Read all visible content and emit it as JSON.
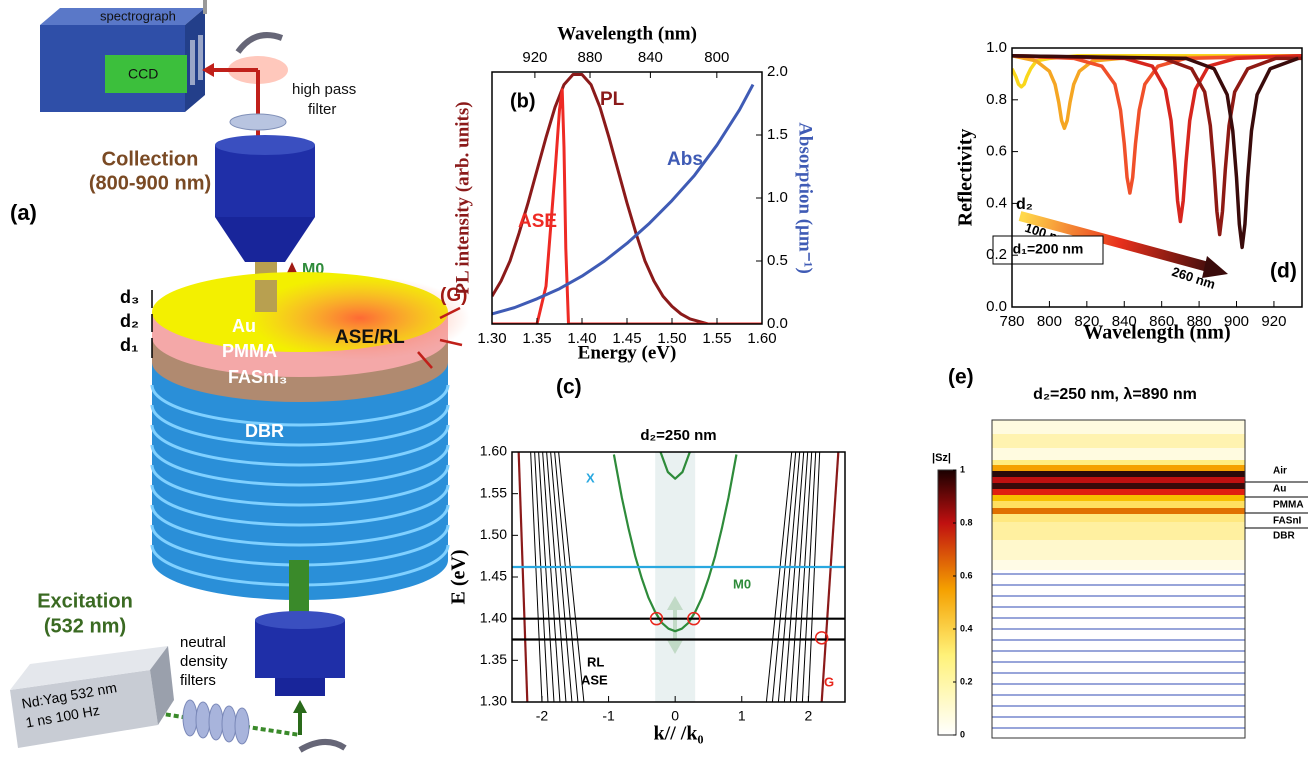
{
  "panel_a": {
    "label": "(a)",
    "spectrograph": "spectrograph",
    "ccd": "CCD",
    "high_pass_filter": [
      "high pass",
      "filter"
    ],
    "collection": [
      "Collection",
      "(800-900 nm)"
    ],
    "m0": "M0",
    "d3": "d₃",
    "d2": "d₂",
    "d1": "d₁",
    "au": "Au",
    "pmma": "PMMA",
    "fasni3": "FASnI₃",
    "dbr": "DBR",
    "ase_rl": "ASE/RL",
    "g": "(G)",
    "excitation": [
      "Excitation",
      "(532 nm)"
    ],
    "nd_filters": [
      "neutral",
      "density",
      "filters"
    ],
    "laser": [
      "Nd:Yag 532 nm",
      "1 ns 100 Hz"
    ]
  },
  "chart_data": [
    {
      "type": "line",
      "label": "(b)",
      "x_label": "Energy (eV)",
      "x2_label": "Wavelength (nm)",
      "y_label": "PL intensity (arb. units)",
      "y2_label": "Absorption (μm⁻¹)",
      "xlim": [
        1.3,
        1.6
      ],
      "xticks": [
        {
          "value": 1.3,
          "label": "1.30"
        },
        1.35,
        {
          "value": 1.4,
          "label": "1.40"
        },
        1.45,
        {
          "value": 1.5,
          "label": "1.50"
        },
        1.55,
        {
          "value": 1.6,
          "label": "1.60"
        }
      ],
      "x2ticks": [
        920,
        880,
        840,
        800
      ],
      "ylim": [
        0,
        1
      ],
      "y2lim": [
        0,
        2
      ],
      "y2ticks": [
        {
          "value": 0,
          "label": "0.0"
        },
        0.5,
        {
          "value": 1,
          "label": "1.0"
        },
        1.5,
        {
          "value": 2,
          "label": "2.0"
        }
      ],
      "series": [
        {
          "name": "PL",
          "color": "#8b1a1a",
          "x": [
            1.3,
            1.31,
            1.32,
            1.33,
            1.34,
            1.35,
            1.36,
            1.37,
            1.38,
            1.39,
            1.4,
            1.41,
            1.42,
            1.43,
            1.44,
            1.45,
            1.46,
            1.47,
            1.48,
            1.49,
            1.5,
            1.51,
            1.52,
            1.53,
            1.54,
            1.55,
            1.56,
            1.57,
            1.58,
            1.59,
            1.6
          ],
          "values": [
            0.11,
            0.17,
            0.25,
            0.36,
            0.48,
            0.61,
            0.74,
            0.86,
            0.95,
            0.99,
            0.99,
            0.95,
            0.86,
            0.74,
            0.61,
            0.48,
            0.36,
            0.25,
            0.17,
            0.11,
            0.07,
            0.04,
            0.02,
            0.01,
            0,
            0,
            0,
            0,
            0,
            0,
            0
          ]
        },
        {
          "name": "ASE",
          "color": "#ee2a24",
          "x": [
            1.3,
            1.35,
            1.36,
            1.37,
            1.375,
            1.378,
            1.38,
            1.382,
            1.385,
            1.6
          ],
          "values": [
            0,
            0,
            0.15,
            0.6,
            0.85,
            0.93,
            0.7,
            0.3,
            0,
            0
          ]
        },
        {
          "name": "Abs",
          "color": "#3f5bb5",
          "axis": "y2",
          "x": [
            1.3,
            1.325,
            1.35,
            1.375,
            1.4,
            1.425,
            1.45,
            1.475,
            1.5,
            1.525,
            1.55,
            1.575,
            1.59
          ],
          "values": [
            0.08,
            0.13,
            0.2,
            0.28,
            0.38,
            0.5,
            0.64,
            0.8,
            0.98,
            1.18,
            1.42,
            1.7,
            1.9
          ]
        }
      ]
    },
    {
      "type": "line",
      "label": "(c)",
      "title": "d₂=250 nm",
      "x_label": "k// /k₀",
      "y_label": "E (eV)",
      "xlim": [
        -2.45,
        2.55
      ],
      "ylim": [
        1.3,
        1.6
      ],
      "xticks": [
        -2,
        -1,
        0,
        1,
        2
      ],
      "yticks": [
        {
          "value": 1.3,
          "label": "1.30"
        },
        1.35,
        {
          "value": 1.4,
          "label": "1.40"
        },
        1.45,
        {
          "value": 1.5,
          "label": "1.50"
        },
        1.55,
        {
          "value": 1.6,
          "label": "1.60"
        }
      ],
      "shaded_region": [
        -0.3,
        0.3
      ],
      "series": [
        {
          "color": "#000000",
          "x": [
            -2.0,
            -2.17
          ],
          "values": [
            1.3,
            1.6
          ]
        },
        {
          "color": "#000000",
          "x": [
            -1.91,
            -2.11
          ],
          "values": [
            1.3,
            1.6
          ]
        },
        {
          "color": "#000000",
          "x": [
            -1.82,
            -2.05
          ],
          "values": [
            1.3,
            1.6
          ]
        },
        {
          "color": "#000000",
          "x": [
            -1.73,
            -1.99
          ],
          "values": [
            1.3,
            1.6
          ]
        },
        {
          "color": "#000000",
          "x": [
            -1.64,
            -1.93
          ],
          "values": [
            1.3,
            1.6
          ]
        },
        {
          "color": "#000000",
          "x": [
            -1.55,
            -1.87
          ],
          "values": [
            1.3,
            1.6
          ]
        },
        {
          "color": "#000000",
          "x": [
            -1.46,
            -1.81
          ],
          "values": [
            1.3,
            1.6
          ]
        },
        {
          "color": "#000000",
          "x": [
            -1.37,
            -1.75
          ],
          "values": [
            1.3,
            1.6
          ]
        },
        {
          "color": "#000000",
          "x": [
            2.0,
            2.17
          ],
          "values": [
            1.3,
            1.6
          ]
        },
        {
          "color": "#000000",
          "x": [
            1.91,
            2.11
          ],
          "values": [
            1.3,
            1.6
          ]
        },
        {
          "color": "#000000",
          "x": [
            1.82,
            2.05
          ],
          "values": [
            1.3,
            1.6
          ]
        },
        {
          "color": "#000000",
          "x": [
            1.73,
            1.99
          ],
          "values": [
            1.3,
            1.6
          ]
        },
        {
          "color": "#000000",
          "x": [
            1.64,
            1.93
          ],
          "values": [
            1.3,
            1.6
          ]
        },
        {
          "color": "#000000",
          "x": [
            1.55,
            1.87
          ],
          "values": [
            1.3,
            1.6
          ]
        },
        {
          "color": "#000000",
          "x": [
            1.46,
            1.81
          ],
          "values": [
            1.3,
            1.6
          ]
        },
        {
          "color": "#000000",
          "x": [
            1.37,
            1.75
          ],
          "values": [
            1.3,
            1.6
          ]
        },
        {
          "color": "#8b1a1a",
          "x": [
            -2.22,
            -2.35
          ],
          "values": [
            1.3,
            1.6
          ]
        },
        {
          "color": "#8b1a1a",
          "x": [
            2.2,
            2.45
          ],
          "values": [
            1.3,
            1.6
          ]
        },
        {
          "name": "M0",
          "color": "#2e8b3a",
          "x": [
            -0.92,
            -0.8,
            -0.7,
            -0.6,
            -0.5,
            -0.4,
            -0.3,
            -0.2,
            -0.1,
            0,
            0.1,
            0.2,
            0.3,
            0.4,
            0.5,
            0.6,
            0.7,
            0.8,
            0.92
          ],
          "values": [
            1.597,
            1.545,
            1.508,
            1.475,
            1.448,
            1.425,
            1.408,
            1.395,
            1.388,
            1.385,
            1.388,
            1.395,
            1.408,
            1.425,
            1.448,
            1.475,
            1.508,
            1.545,
            1.597
          ]
        },
        {
          "color": "#2e8b3a",
          "x": [
            -0.22,
            -0.11,
            0,
            0.11,
            0.22
          ],
          "values": [
            1.6,
            1.576,
            1.568,
            1.576,
            1.6
          ]
        },
        {
          "name": "X",
          "color": "#29a8e0",
          "x": [
            -2.45,
            2.55
          ],
          "values": [
            1.462,
            1.462
          ]
        },
        {
          "name": "RL",
          "color": "#000000",
          "x": [
            -2.45,
            2.55
          ],
          "values": [
            1.4,
            1.4
          ]
        },
        {
          "name": "ASE",
          "color": "#000000",
          "x": [
            -2.45,
            2.55
          ],
          "values": [
            1.375,
            1.375
          ]
        },
        {
          "color": "#e8261c",
          "marker": "circle",
          "x": [
            -0.28,
            0.28
          ],
          "values": [
            1.4,
            1.4
          ]
        },
        {
          "name": "G",
          "color": "#e8261c",
          "marker": "circle",
          "x": [
            2.2
          ],
          "values": [
            1.377
          ]
        }
      ]
    },
    {
      "type": "line",
      "label": "(d)",
      "x_label": "Wavelength (nm)",
      "y_label": "Reflectivity",
      "xlim": [
        780,
        935
      ],
      "ylim": [
        0,
        1
      ],
      "xticks": [
        780,
        800,
        820,
        840,
        860,
        880,
        900,
        920
      ],
      "yticks": [
        {
          "value": 0,
          "label": "0.0"
        },
        0.2,
        0.4,
        0.6,
        0.8,
        {
          "value": 1,
          "label": "1.0"
        }
      ],
      "annotations": {
        "d2": "d₂",
        "start": "100 nm",
        "end": "260 nm",
        "d1": "d₁=200 nm"
      },
      "series": [
        {
          "color": "#f9d71c",
          "x": [
            780,
            782,
            783.5,
            785,
            786.5,
            788,
            790,
            793,
            800,
            815,
            935
          ],
          "values": [
            0.92,
            0.89,
            0.86,
            0.85,
            0.86,
            0.89,
            0.92,
            0.95,
            0.96,
            0.97,
            0.97
          ]
        },
        {
          "color": "#f5a623",
          "x": [
            780,
            793,
            800,
            803,
            805,
            806.5,
            808,
            809.5,
            811,
            813,
            816,
            823,
            838,
            935
          ],
          "values": [
            0.97,
            0.95,
            0.91,
            0.86,
            0.79,
            0.72,
            0.69,
            0.72,
            0.79,
            0.86,
            0.91,
            0.95,
            0.96,
            0.97
          ]
        },
        {
          "color": "#f0502a",
          "x": [
            780,
            813,
            828,
            835,
            838,
            840,
            841.5,
            843,
            844.5,
            846,
            848,
            851,
            858,
            873,
            935
          ],
          "values": [
            0.97,
            0.96,
            0.93,
            0.86,
            0.76,
            0.63,
            0.5,
            0.44,
            0.5,
            0.63,
            0.76,
            0.86,
            0.93,
            0.96,
            0.97
          ]
        },
        {
          "color": "#d7261e",
          "x": [
            780,
            840,
            855,
            862,
            865,
            867,
            868.5,
            870,
            871.5,
            873,
            875,
            878,
            885,
            900,
            935
          ],
          "values": [
            0.97,
            0.96,
            0.93,
            0.84,
            0.72,
            0.56,
            0.41,
            0.33,
            0.41,
            0.56,
            0.72,
            0.84,
            0.93,
            0.96,
            0.97
          ]
        },
        {
          "color": "#8e1a14",
          "x": [
            780,
            861,
            876,
            883,
            886,
            888,
            889.5,
            891,
            892.5,
            894,
            896,
            899,
            906,
            921,
            935
          ],
          "values": [
            0.97,
            0.96,
            0.92,
            0.83,
            0.7,
            0.53,
            0.37,
            0.28,
            0.37,
            0.53,
            0.7,
            0.83,
            0.92,
            0.96,
            0.96
          ]
        },
        {
          "color": "#3a0b0b",
          "x": [
            780,
            873,
            888,
            895,
            898,
            900,
            901.5,
            903,
            904.5,
            906,
            908,
            911,
            918,
            933
          ],
          "values": [
            0.97,
            0.96,
            0.92,
            0.82,
            0.68,
            0.5,
            0.32,
            0.23,
            0.32,
            0.5,
            0.68,
            0.82,
            0.92,
            0.96
          ]
        }
      ]
    }
  ],
  "panel_e": {
    "label": "(e)",
    "title": "d₂=250 nm, λ=890 nm",
    "colorbar_label": "|Sz|",
    "colorbar_lim": [
      0,
      1
    ],
    "colorbar_ticks": [
      1,
      0.8,
      0.6,
      0.4,
      0.2,
      0
    ],
    "layers": [
      "Air",
      "Au",
      "PMMA",
      "FASnI",
      "DBR"
    ]
  }
}
